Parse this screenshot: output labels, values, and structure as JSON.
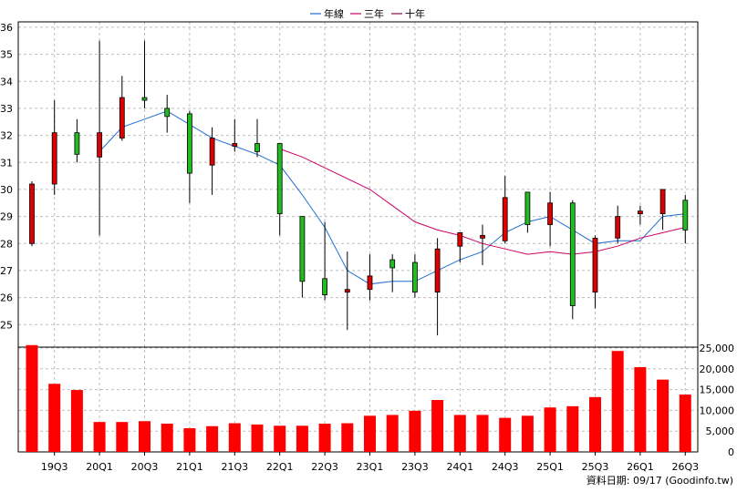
{
  "legend": [
    {
      "label": "年線",
      "color": "#1f6fd1"
    },
    {
      "label": "三年",
      "color": "#cc0066"
    },
    {
      "label": "十年",
      "color": "#8a0a4a"
    }
  ],
  "source_label": "資料日期: 09/17  (Goodinfo.tw)",
  "colors": {
    "up": "#dd0000",
    "down": "#22bb22",
    "volume": "#ff0000",
    "grid": "#bdbdbd"
  },
  "chart_data": {
    "type": "candlestick",
    "x_tick_labels": [
      "19Q3",
      "20Q1",
      "20Q3",
      "21Q1",
      "21Q3",
      "22Q1",
      "22Q3",
      "23Q1",
      "23Q3",
      "24Q1",
      "24Q3",
      "25Q1",
      "25Q3",
      "26Q1",
      "26Q3"
    ],
    "price_ylim": [
      24.2,
      36.2
    ],
    "price_ticks": [
      25,
      26,
      27,
      28,
      29,
      30,
      31,
      32,
      33,
      34,
      35,
      36
    ],
    "candles": [
      {
        "o": 28.0,
        "h": 30.3,
        "l": 27.9,
        "c": 30.2
      },
      {
        "o": 30.2,
        "h": 33.3,
        "l": 29.8,
        "c": 32.1
      },
      {
        "o": 32.1,
        "h": 32.6,
        "l": 31.0,
        "c": 31.3
      },
      {
        "o": 31.2,
        "h": 35.5,
        "l": 28.3,
        "c": 32.1
      },
      {
        "o": 31.9,
        "h": 34.2,
        "l": 31.8,
        "c": 33.4
      },
      {
        "o": 33.4,
        "h": 35.5,
        "l": 33.0,
        "c": 33.3
      },
      {
        "o": 33.0,
        "h": 33.5,
        "l": 32.1,
        "c": 32.7
      },
      {
        "o": 32.8,
        "h": 32.9,
        "l": 29.5,
        "c": 30.6
      },
      {
        "o": 30.9,
        "h": 32.3,
        "l": 29.8,
        "c": 31.9
      },
      {
        "o": 31.6,
        "h": 32.6,
        "l": 31.4,
        "c": 31.7
      },
      {
        "o": 31.7,
        "h": 32.6,
        "l": 31.2,
        "c": 31.4
      },
      {
        "o": 31.7,
        "h": 31.7,
        "l": 28.3,
        "c": 29.1
      },
      {
        "o": 29.0,
        "h": 29.0,
        "l": 26.0,
        "c": 26.6
      },
      {
        "o": 26.7,
        "h": 28.8,
        "l": 25.9,
        "c": 26.1
      },
      {
        "o": 26.2,
        "h": 27.7,
        "l": 24.8,
        "c": 26.3
      },
      {
        "o": 26.3,
        "h": 27.6,
        "l": 25.9,
        "c": 26.8
      },
      {
        "o": 27.4,
        "h": 27.6,
        "l": 26.2,
        "c": 27.1
      },
      {
        "o": 27.3,
        "h": 27.6,
        "l": 26.0,
        "c": 26.2
      },
      {
        "o": 26.2,
        "h": 28.2,
        "l": 24.6,
        "c": 27.8
      },
      {
        "o": 27.9,
        "h": 28.4,
        "l": 27.3,
        "c": 28.4
      },
      {
        "o": 28.2,
        "h": 28.7,
        "l": 27.2,
        "c": 28.3
      },
      {
        "o": 28.1,
        "h": 30.5,
        "l": 28.0,
        "c": 29.7
      },
      {
        "o": 29.9,
        "h": 29.9,
        "l": 28.4,
        "c": 28.7
      },
      {
        "o": 28.7,
        "h": 29.9,
        "l": 27.9,
        "c": 29.5
      },
      {
        "o": 29.5,
        "h": 29.6,
        "l": 25.2,
        "c": 25.7
      },
      {
        "o": 26.2,
        "h": 28.3,
        "l": 25.6,
        "c": 28.2
      },
      {
        "o": 28.2,
        "h": 29.4,
        "l": 28.0,
        "c": 29.0
      },
      {
        "o": 29.1,
        "h": 29.4,
        "l": 28.7,
        "c": 29.2
      },
      {
        "o": 29.1,
        "h": 30.0,
        "l": 28.5,
        "c": 30.0
      },
      {
        "o": 29.6,
        "h": 29.8,
        "l": 28.0,
        "c": 28.5
      }
    ],
    "series": [
      {
        "name": "年線",
        "values": [
          null,
          null,
          null,
          31.4,
          32.3,
          32.6,
          32.9,
          32.4,
          31.9,
          31.6,
          31.3,
          30.9,
          29.8,
          28.6,
          27.0,
          26.5,
          26.6,
          26.6,
          27.0,
          27.4,
          27.7,
          28.4,
          28.8,
          29.0,
          28.5,
          28.0,
          28.1,
          28.1,
          29.0,
          29.1
        ]
      },
      {
        "name": "三年",
        "values": [
          null,
          null,
          null,
          null,
          null,
          null,
          null,
          null,
          null,
          null,
          null,
          31.5,
          31.2,
          30.8,
          30.4,
          30.0,
          29.4,
          28.8,
          28.5,
          28.3,
          28.0,
          27.8,
          27.6,
          27.7,
          27.6,
          27.7,
          27.9,
          28.2,
          28.4,
          28.6
        ]
      }
    ],
    "volume_ylim": [
      0,
      25000
    ],
    "volume_ticks": [
      "0",
      "5,000",
      "10,000",
      "15,000",
      "20,000",
      "25,000"
    ],
    "volume": [
      25700,
      16400,
      14900,
      7200,
      7200,
      7400,
      6800,
      5700,
      6200,
      6900,
      6600,
      6300,
      6300,
      6800,
      6900,
      8700,
      8900,
      9900,
      12500,
      8900,
      8900,
      8200,
      8700,
      10700,
      11000,
      13200,
      24300,
      20400,
      17400,
      13800
    ]
  }
}
